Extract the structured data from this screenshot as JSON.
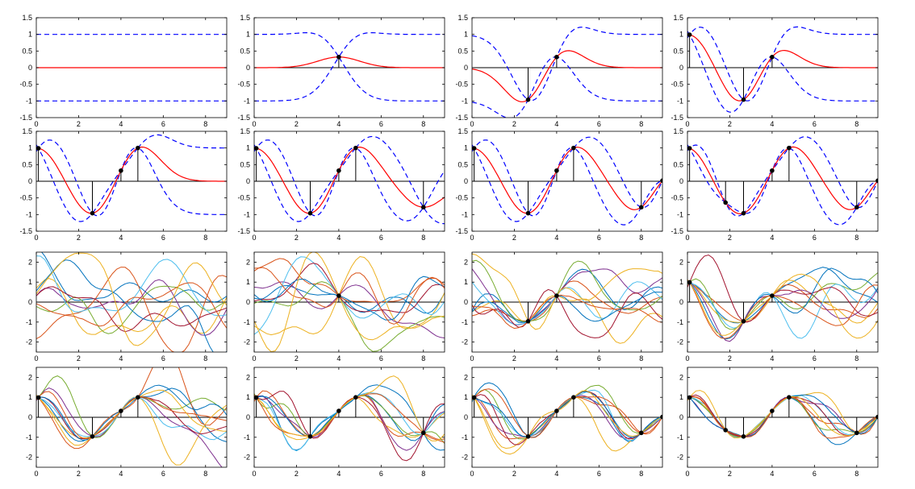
{
  "figure": {
    "layout": "4x4 grid of small multiples",
    "row1_ytick_labels": [
      "-1.5",
      "-1",
      "-0.5",
      "0",
      "0.5",
      "1",
      "1.5"
    ],
    "row3_ytick_labels": [
      "-2",
      "-1",
      "0",
      "1",
      "2"
    ],
    "xtick_labels": [
      "0",
      "2",
      "4",
      "6",
      "8"
    ]
  },
  "styles": {
    "mean_color": "#ff0000",
    "band_color": "#0000ff",
    "axis_color": "#000000",
    "sample_palette": [
      "#0072BD",
      "#D95319",
      "#EDB120",
      "#7E2F8E",
      "#77AC30",
      "#4DBEEE",
      "#A2142F"
    ]
  },
  "chart_data": [
    {
      "type": "line",
      "panel": "row1-col1",
      "xlim": [
        0,
        9
      ],
      "ylim": [
        -1.5,
        1.5
      ],
      "grid": false,
      "observations": [],
      "series": [
        {
          "role": "mean",
          "style": "solid red"
        },
        {
          "role": "band",
          "style": "dashed blue"
        }
      ]
    },
    {
      "type": "line",
      "panel": "row1-col2",
      "xlim": [
        0,
        9
      ],
      "ylim": [
        -1.5,
        1.5
      ],
      "grid": false,
      "observations": [
        [
          4.0,
          0.32
        ]
      ],
      "series": [
        {
          "role": "mean",
          "style": "solid red"
        },
        {
          "role": "band",
          "style": "dashed blue"
        }
      ]
    },
    {
      "type": "line",
      "panel": "row1-col3",
      "xlim": [
        0,
        9
      ],
      "ylim": [
        -1.5,
        1.5
      ],
      "grid": false,
      "observations": [
        [
          2.65,
          -0.96
        ],
        [
          4.0,
          0.32
        ]
      ],
      "series": [
        {
          "role": "mean",
          "style": "solid red"
        },
        {
          "role": "band",
          "style": "dashed blue"
        }
      ]
    },
    {
      "type": "line",
      "panel": "row1-col4",
      "xlim": [
        0,
        9
      ],
      "ylim": [
        -1.5,
        1.5
      ],
      "grid": false,
      "observations": [
        [
          0.1,
          0.99
        ],
        [
          2.65,
          -0.96
        ],
        [
          4.0,
          0.32
        ]
      ],
      "series": [
        {
          "role": "mean",
          "style": "solid red"
        },
        {
          "role": "band",
          "style": "dashed blue"
        }
      ]
    },
    {
      "type": "line",
      "panel": "row2-col1",
      "xlim": [
        0,
        9
      ],
      "ylim": [
        -1.5,
        1.5
      ],
      "grid": false,
      "observations": [
        [
          0.1,
          0.99
        ],
        [
          2.65,
          -0.96
        ],
        [
          4.0,
          0.32
        ],
        [
          4.8,
          1.0
        ]
      ],
      "series": [
        {
          "role": "mean",
          "style": "solid red"
        },
        {
          "role": "band",
          "style": "dashed blue"
        }
      ]
    },
    {
      "type": "line",
      "panel": "row2-col2",
      "xlim": [
        0,
        9
      ],
      "ylim": [
        -1.5,
        1.5
      ],
      "grid": false,
      "observations": [
        [
          0.1,
          0.99
        ],
        [
          2.65,
          -0.96
        ],
        [
          4.0,
          0.32
        ],
        [
          4.8,
          1.0
        ],
        [
          8.0,
          -0.78
        ]
      ],
      "series": [
        {
          "role": "mean",
          "style": "solid red"
        },
        {
          "role": "band",
          "style": "dashed blue"
        }
      ]
    },
    {
      "type": "line",
      "panel": "row2-col3",
      "xlim": [
        0,
        9
      ],
      "ylim": [
        -1.5,
        1.5
      ],
      "grid": false,
      "observations": [
        [
          0.1,
          0.99
        ],
        [
          2.65,
          -0.96
        ],
        [
          4.0,
          0.32
        ],
        [
          4.8,
          1.0
        ],
        [
          8.0,
          -0.78
        ],
        [
          9.0,
          0.02
        ]
      ],
      "series": [
        {
          "role": "mean",
          "style": "solid red"
        },
        {
          "role": "band",
          "style": "dashed blue"
        }
      ]
    },
    {
      "type": "line",
      "panel": "row2-col4",
      "xlim": [
        0,
        9
      ],
      "ylim": [
        -1.5,
        1.5
      ],
      "grid": false,
      "observations": [
        [
          0.1,
          0.99
        ],
        [
          1.8,
          -0.64
        ],
        [
          2.65,
          -0.96
        ],
        [
          4.0,
          0.32
        ],
        [
          4.8,
          1.0
        ],
        [
          8.0,
          -0.78
        ],
        [
          9.0,
          0.02
        ]
      ],
      "series": [
        {
          "role": "mean",
          "style": "solid red"
        },
        {
          "role": "band",
          "style": "dashed blue"
        }
      ]
    },
    {
      "type": "line",
      "panel": "row3-col1",
      "xlim": [
        0,
        9
      ],
      "ylim": [
        -2.5,
        2.5
      ],
      "grid": false,
      "observations": [],
      "series": [
        {
          "role": "samples",
          "count": 10
        }
      ]
    },
    {
      "type": "line",
      "panel": "row3-col2",
      "xlim": [
        0,
        9
      ],
      "ylim": [
        -2.5,
        2.5
      ],
      "grid": false,
      "observations": [
        [
          4.0,
          0.32
        ]
      ],
      "series": [
        {
          "role": "samples",
          "count": 10
        }
      ]
    },
    {
      "type": "line",
      "panel": "row3-col3",
      "xlim": [
        0,
        9
      ],
      "ylim": [
        -2.5,
        2.5
      ],
      "grid": false,
      "observations": [
        [
          2.65,
          -0.96
        ],
        [
          4.0,
          0.32
        ]
      ],
      "series": [
        {
          "role": "samples",
          "count": 10
        }
      ]
    },
    {
      "type": "line",
      "panel": "row3-col4",
      "xlim": [
        0,
        9
      ],
      "ylim": [
        -2.5,
        2.5
      ],
      "grid": false,
      "observations": [
        [
          0.1,
          0.99
        ],
        [
          2.65,
          -0.96
        ],
        [
          4.0,
          0.32
        ]
      ],
      "series": [
        {
          "role": "samples",
          "count": 10
        }
      ]
    },
    {
      "type": "line",
      "panel": "row4-col1",
      "xlim": [
        0,
        9
      ],
      "ylim": [
        -2.5,
        2.5
      ],
      "grid": false,
      "observations": [
        [
          0.1,
          0.99
        ],
        [
          2.65,
          -0.96
        ],
        [
          4.0,
          0.32
        ],
        [
          4.8,
          1.0
        ]
      ],
      "series": [
        {
          "role": "samples",
          "count": 10
        }
      ]
    },
    {
      "type": "line",
      "panel": "row4-col2",
      "xlim": [
        0,
        9
      ],
      "ylim": [
        -2.5,
        2.5
      ],
      "grid": false,
      "observations": [
        [
          0.1,
          0.99
        ],
        [
          2.65,
          -0.96
        ],
        [
          4.0,
          0.32
        ],
        [
          4.8,
          1.0
        ],
        [
          8.0,
          -0.78
        ]
      ],
      "series": [
        {
          "role": "samples",
          "count": 10
        }
      ]
    },
    {
      "type": "line",
      "panel": "row4-col3",
      "xlim": [
        0,
        9
      ],
      "ylim": [
        -2.5,
        2.5
      ],
      "grid": false,
      "observations": [
        [
          0.1,
          0.99
        ],
        [
          2.65,
          -0.96
        ],
        [
          4.0,
          0.32
        ],
        [
          4.8,
          1.0
        ],
        [
          8.0,
          -0.78
        ],
        [
          9.0,
          0.02
        ]
      ],
      "series": [
        {
          "role": "samples",
          "count": 10
        }
      ]
    },
    {
      "type": "line",
      "panel": "row4-col4",
      "xlim": [
        0,
        9
      ],
      "ylim": [
        -2.5,
        2.5
      ],
      "grid": false,
      "observations": [
        [
          0.1,
          0.99
        ],
        [
          1.8,
          -0.64
        ],
        [
          2.65,
          -0.96
        ],
        [
          4.0,
          0.32
        ],
        [
          4.8,
          1.0
        ],
        [
          8.0,
          -0.78
        ],
        [
          9.0,
          0.02
        ]
      ],
      "series": [
        {
          "role": "samples",
          "count": 10
        }
      ]
    }
  ]
}
